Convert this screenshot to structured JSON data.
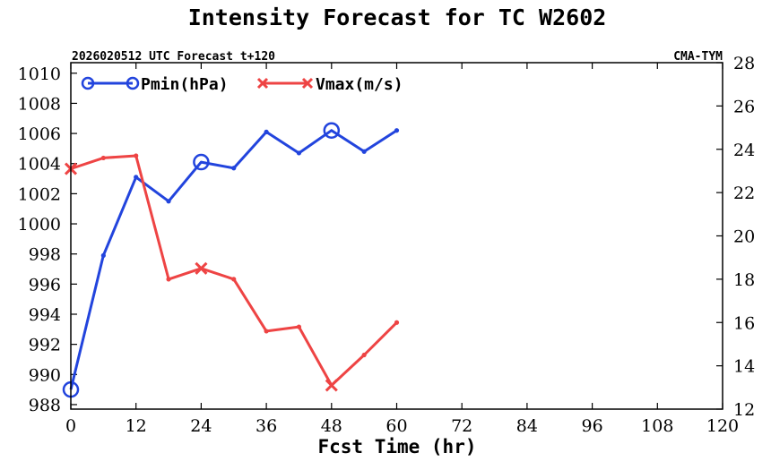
{
  "chart_data": {
    "type": "line",
    "title": "Intensity Forecast for TC W2602",
    "subtitle_left": "2026020512 UTC Forecast t+120",
    "subtitle_right": "CMA-TYM",
    "xlabel": "Fcst Time (hr)",
    "xlim": [
      0,
      120
    ],
    "xticks": [
      0,
      12,
      24,
      36,
      48,
      60,
      72,
      84,
      96,
      108,
      120
    ],
    "y_left": {
      "label": "Pmin(hPa)",
      "ylim": [
        987.7,
        1010.7
      ],
      "ticks": [
        988,
        990,
        992,
        994,
        996,
        998,
        1000,
        1002,
        1004,
        1006,
        1008,
        1010
      ]
    },
    "y_right": {
      "label": "Vmax(m/s)",
      "ylim": [
        12,
        28
      ],
      "ticks": [
        12,
        14,
        16,
        18,
        20,
        22,
        24,
        26,
        28
      ]
    },
    "x": [
      0,
      6,
      12,
      18,
      24,
      30,
      36,
      42,
      48,
      54,
      60
    ],
    "series": [
      {
        "name": "Pmin(hPa)",
        "axis": "left",
        "color": "#2244dd",
        "marker": "circle",
        "values": [
          989.0,
          997.9,
          1003.1,
          1001.5,
          1004.1,
          1003.7,
          1006.1,
          1004.7,
          1006.2,
          1004.8,
          1006.2
        ],
        "major_marker_x": [
          0,
          24,
          48
        ]
      },
      {
        "name": "Vmax(m/s)",
        "axis": "right",
        "color": "#ee4444",
        "marker": "x",
        "values": [
          23.1,
          23.6,
          23.7,
          18.0,
          18.5,
          18.0,
          15.6,
          15.8,
          13.1,
          14.5,
          16.0
        ],
        "major_marker_x": [
          0,
          24,
          48
        ]
      }
    ]
  }
}
